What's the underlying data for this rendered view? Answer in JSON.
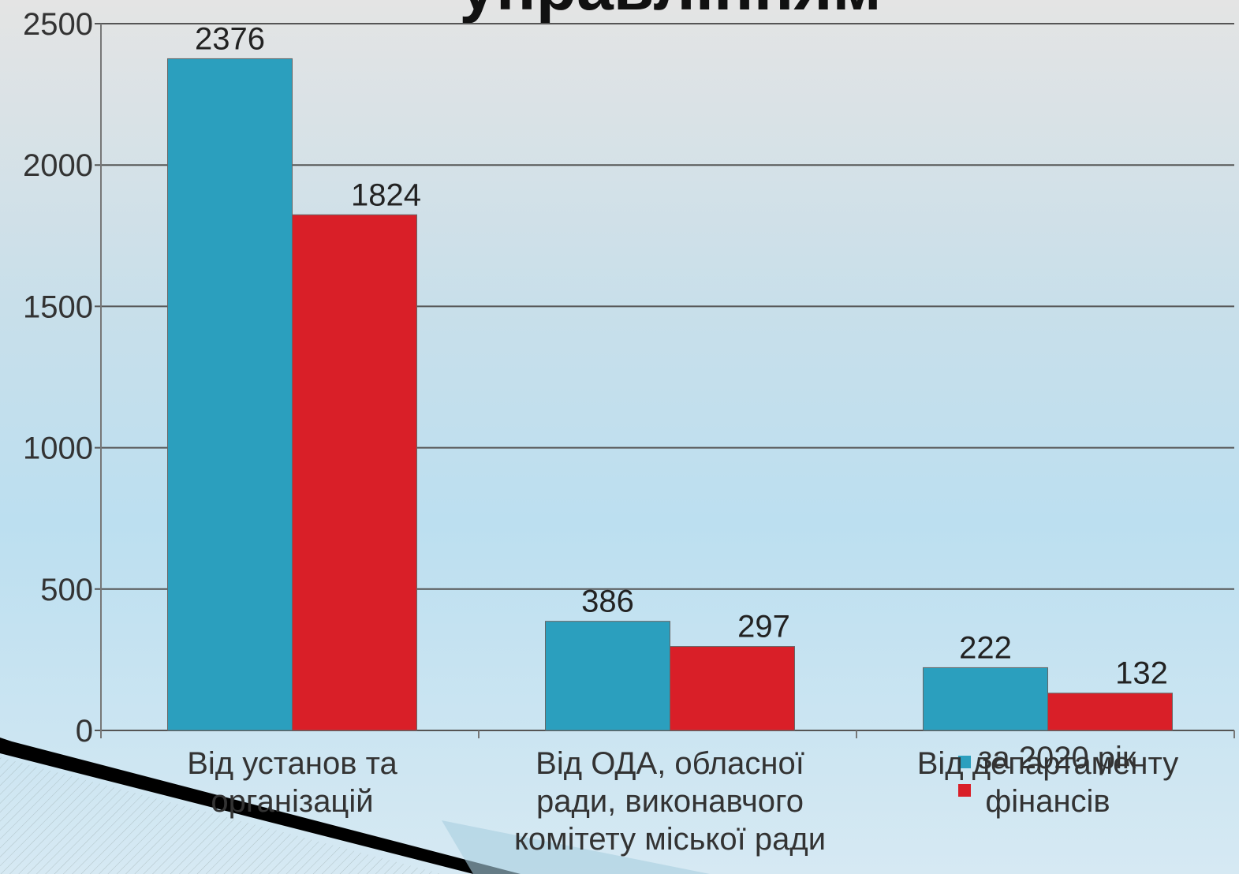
{
  "chart_data": {
    "type": "bar",
    "title": "управлінням",
    "categories": [
      "Від установ та організацій",
      "Від ОДА, обласної ради, виконавчого комітету міської ради",
      "Від департаменту фінансів"
    ],
    "series": [
      {
        "name": "за 2020 рік",
        "color": "#2b9fbe",
        "values": [
          2376,
          386,
          222
        ]
      },
      {
        "color": "#d91f28",
        "values": [
          1824,
          297,
          132
        ]
      }
    ],
    "ylim": [
      0,
      2500
    ],
    "yticks": [
      0,
      500,
      1000,
      1500,
      2000,
      2500
    ],
    "grid": true
  }
}
